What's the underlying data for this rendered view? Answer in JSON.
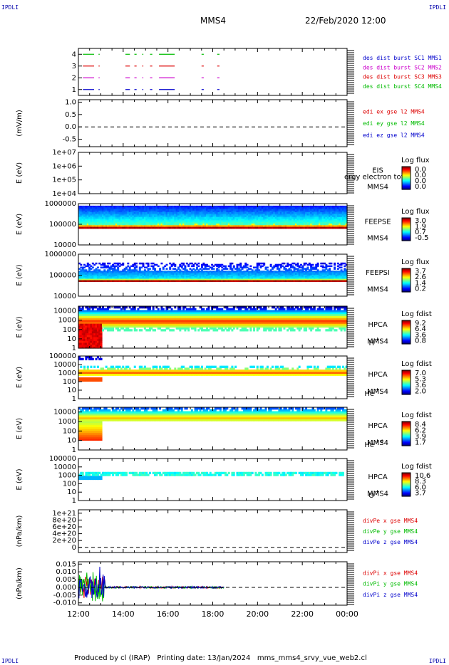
{
  "header": {
    "corner_tl": "IPDLI",
    "corner_tr": "IPDLI",
    "corner_bl": "IPDLI",
    "corner_br": "IPDLI",
    "spacecraft": "MMS4",
    "datetime": "22/Feb/2020 12:00"
  },
  "footer": {
    "text": "Produced by cl (IRAP)   Printing date: 13/Jan/2024   mms_mms4_srvy_vue_web2.cl"
  },
  "colors": {
    "mms1": "#0000cc",
    "mms2": "#cc00cc",
    "mms3": "#dd0000",
    "mms4": "#00bb00",
    "x_component": "#dd0000",
    "y_component": "#00bb00",
    "z_component": "#0000cc"
  },
  "chart_data": [
    {
      "id": "burst",
      "type": "scatter",
      "ylim": [
        0.5,
        4.5
      ],
      "yticks": [
        "1",
        "2",
        "3",
        "4"
      ],
      "legend": [
        {
          "label": "des dist burst SC1 MMS1",
          "color": "#0000cc"
        },
        {
          "label": "des dist burst SC2 MMS2",
          "color": "#cc00cc"
        },
        {
          "label": "des dist burst SC3 MMS3",
          "color": "#dd0000"
        },
        {
          "label": "des dist burst SC4 MMS4",
          "color": "#00bb00"
        }
      ],
      "intervals": [
        [
          12.2,
          12.7
        ],
        [
          12.9,
          12.95
        ],
        [
          14.1,
          14.3
        ],
        [
          14.5,
          14.6
        ],
        [
          14.85,
          14.9
        ],
        [
          15.2,
          15.3
        ],
        [
          15.6,
          16.3
        ],
        [
          17.5,
          17.6
        ],
        [
          18.2,
          18.3
        ]
      ]
    },
    {
      "id": "efield",
      "type": "line",
      "ylabel": "(mV/m)",
      "ylim": [
        -0.8,
        1.1
      ],
      "yticks": [
        "1.0",
        "0.5",
        "0.0",
        "-0.5"
      ],
      "ytick_values": [
        1.0,
        0.5,
        0.0,
        -0.5
      ],
      "zero_line": true,
      "legend": [
        {
          "label": "edi ex gse l2 MMS4",
          "color": "#dd0000"
        },
        {
          "label": "edi ey gse l2 MMS4",
          "color": "#00bb00"
        },
        {
          "label": "edi ez gse l2 MMS4",
          "color": "#0000cc"
        }
      ]
    },
    {
      "id": "eis",
      "type": "heatmap",
      "ylabel": "E (eV)",
      "yticks": [
        "1e+07",
        "1e+06",
        "1e+05",
        "1e+04"
      ],
      "ytick_values": [
        7,
        6,
        5,
        4
      ],
      "ylog_range": [
        4,
        7
      ],
      "side_labels": [
        "EIS",
        "MMS4"
      ],
      "overlay_label": "ergy electron tof",
      "cbar_title": "Log flux",
      "cbar_ticks": [
        "0.0",
        "0.0",
        "0.0",
        "0.0"
      ]
    },
    {
      "id": "feepse",
      "type": "heatmap",
      "ylabel": "E (eV)",
      "yticks": [
        "1000000",
        "100000",
        "10000"
      ],
      "ytick_values": [
        6,
        5,
        4
      ],
      "ylog_range": [
        4,
        6
      ],
      "side_labels": [
        "FEEPSE",
        "MMS4"
      ],
      "cbar_title": "Log flux",
      "cbar_ticks": [
        "3.0",
        "1.9",
        "0.7",
        "-0.5"
      ],
      "data_log_range": [
        4.8,
        5.9
      ],
      "coverage_hours": [
        12.0,
        24.0
      ]
    },
    {
      "id": "feepsi",
      "type": "heatmap",
      "ylabel": "E (eV)",
      "yticks": [
        "1000000",
        "100000",
        "10000"
      ],
      "ytick_values": [
        6,
        5,
        4
      ],
      "ylog_range": [
        4,
        6
      ],
      "side_labels": [
        "FEEPSI",
        "MMS4"
      ],
      "cbar_title": "Log flux",
      "cbar_ticks": [
        "3.7",
        "2.6",
        "1.4",
        "0.2"
      ],
      "data_log_range": [
        4.7,
        5.6
      ],
      "coverage_hours": [
        12.0,
        24.0
      ]
    },
    {
      "id": "hpca_h",
      "type": "heatmap",
      "ylabel": "E (eV)",
      "yticks": [
        "10000",
        "1000",
        "100",
        "10",
        "1"
      ],
      "ytick_values": [
        4,
        3,
        2,
        1,
        0
      ],
      "ylog_range": [
        0,
        4.5
      ],
      "side_labels": [
        "HPCA",
        "MMS4"
      ],
      "species": "H",
      "species_charge": "+",
      "cbar_title": "Log fdist",
      "cbar_ticks": [
        "9.2",
        "6.4",
        "3.6",
        "0.8"
      ],
      "coverage_hours": [
        12.0,
        24.0
      ]
    },
    {
      "id": "hpca_he",
      "type": "heatmap",
      "ylabel": "E (eV)",
      "yticks": [
        "100000",
        "10000",
        "1000",
        "100",
        "10",
        "1"
      ],
      "ytick_values": [
        5,
        4,
        3,
        2,
        1,
        0
      ],
      "ylog_range": [
        0,
        5
      ],
      "side_labels": [
        "HPCA",
        "MMS4"
      ],
      "species": "He",
      "species_charge": "+",
      "cbar_title": "Log fdist",
      "cbar_ticks": [
        "7.0",
        "5.3",
        "3.6",
        "2.0"
      ],
      "coverage_hours": [
        12.0,
        24.0
      ]
    },
    {
      "id": "hpca_he2",
      "type": "heatmap",
      "ylabel": "E (eV)",
      "yticks": [
        "10000",
        "1000",
        "100",
        "10",
        "1"
      ],
      "ytick_values": [
        4,
        3,
        2,
        1,
        0
      ],
      "ylog_range": [
        0,
        4.5
      ],
      "side_labels": [
        "HPCA",
        "MMS4"
      ],
      "species": "He",
      "species_charge": "++",
      "cbar_title": "Log fdist",
      "cbar_ticks": [
        "8.4",
        "6.2",
        "3.9",
        "1.7"
      ],
      "coverage_hours": [
        12.0,
        24.0
      ]
    },
    {
      "id": "hpca_o",
      "type": "heatmap",
      "ylabel": "E (eV)",
      "yticks": [
        "100000",
        "10000",
        "1000",
        "100",
        "10",
        "1"
      ],
      "ytick_values": [
        5,
        4,
        3,
        2,
        1,
        0
      ],
      "ylog_range": [
        0,
        5
      ],
      "side_labels": [
        "HPCA",
        "MMS4"
      ],
      "species": "O",
      "species_charge": "+",
      "cbar_title": "Log fdist",
      "cbar_ticks": [
        "10.6",
        "8.3",
        "6.0",
        "3.7"
      ],
      "coverage_hours": [
        12.0,
        24.0
      ]
    },
    {
      "id": "divpe",
      "type": "line",
      "ylabel": "(nPa/km)",
      "ylim": [
        -1.5e+20,
        1.1e+21
      ],
      "yticks": [
        "1e+21",
        "8e+20",
        "6e+20",
        "4e+20",
        "2e+20",
        "0"
      ],
      "ytick_values": [
        1e+21,
        8e+20,
        6e+20,
        4e+20,
        2e+20,
        0
      ],
      "zero_line": true,
      "legend": [
        {
          "label": "divPe x gse MMS4",
          "color": "#dd0000"
        },
        {
          "label": "divPe y gse MMS4",
          "color": "#00bb00"
        },
        {
          "label": "divPe z gse MMS4",
          "color": "#0000cc"
        }
      ]
    },
    {
      "id": "divpi",
      "type": "line",
      "ylabel": "(nPa/km)",
      "ylim": [
        -0.0115,
        0.0165
      ],
      "yticks": [
        "0.015",
        "0.010",
        "0.005",
        "0.000",
        "-0.005",
        "-0.010"
      ],
      "ytick_values": [
        0.015,
        0.01,
        0.005,
        0.0,
        -0.005,
        -0.01
      ],
      "zero_line": true,
      "data_span_hours": [
        12.0,
        18.5
      ],
      "legend": [
        {
          "label": "divPi x gse MMS4",
          "color": "#dd0000"
        },
        {
          "label": "divPi y gse MMS4",
          "color": "#00bb00"
        },
        {
          "label": "divPi z gse MMS4",
          "color": "#0000cc"
        }
      ]
    }
  ],
  "xaxis": {
    "tick_labels": [
      "12:00",
      "14:00",
      "16:00",
      "18:00",
      "20:00",
      "22:00",
      "00:00"
    ],
    "tick_hours": [
      12,
      14,
      16,
      18,
      20,
      22,
      24
    ],
    "range_hours": [
      12,
      24
    ]
  }
}
